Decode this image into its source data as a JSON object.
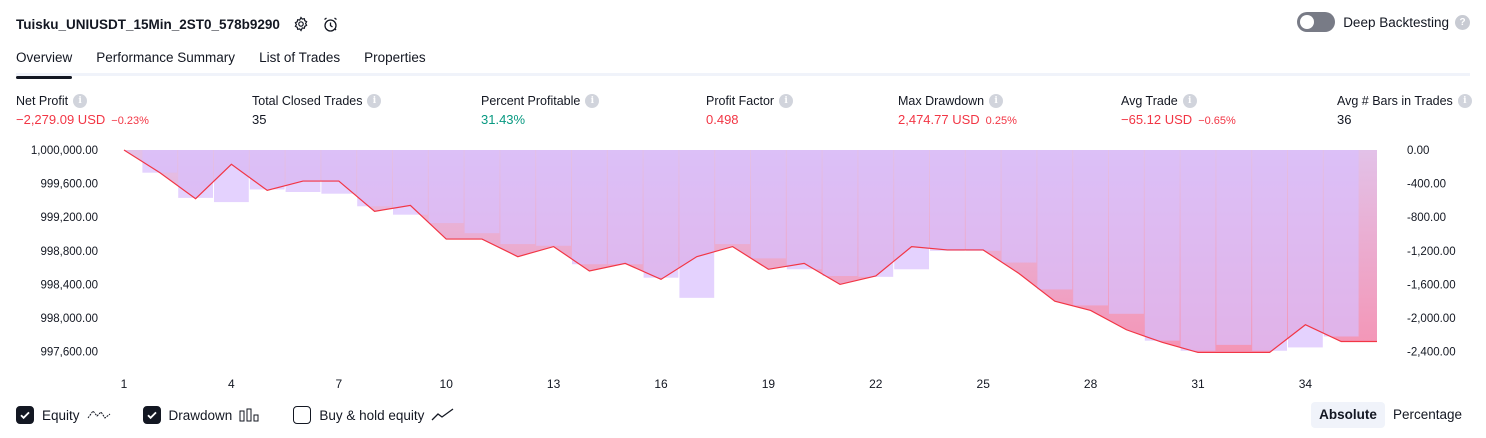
{
  "header": {
    "title": "Tuisku_UNIUSDT_15Min_2ST0_578b9290",
    "deep_backtesting_label": "Deep Backtesting",
    "deep_backtesting_enabled": false
  },
  "tabs": [
    "Overview",
    "Performance Summary",
    "List of Trades",
    "Properties"
  ],
  "active_tab": "Overview",
  "metrics": [
    {
      "label": "Net Profit",
      "value": "−2,279.09 USD",
      "pct": "−0.23%",
      "tone": "neg"
    },
    {
      "label": "Total Closed Trades",
      "value": "35",
      "pct": "",
      "tone": "neutral"
    },
    {
      "label": "Percent Profitable",
      "value": "31.43%",
      "pct": "",
      "tone": "pos"
    },
    {
      "label": "Profit Factor",
      "value": "0.498",
      "pct": "",
      "tone": "neg"
    },
    {
      "label": "Max Drawdown",
      "value": "2,474.77 USD",
      "pct": "0.25%",
      "tone": "neg"
    },
    {
      "label": "Avg Trade",
      "value": "−65.12 USD",
      "pct": "−0.65%",
      "tone": "neg"
    },
    {
      "label": "Avg # Bars in Trades",
      "value": "36",
      "pct": "",
      "tone": "neutral"
    }
  ],
  "chart_data": {
    "type": "area",
    "equity_axis": {
      "ticks": [
        "1,000,000.00",
        "999,600.00",
        "999,200.00",
        "998,800.00",
        "998,400.00",
        "998,000.00",
        "997,600.00"
      ],
      "tick_values": [
        1000000,
        999600,
        999200,
        998800,
        998400,
        998000,
        997600
      ],
      "ylim": [
        997500,
        1000000
      ]
    },
    "drawdown_axis": {
      "ticks": [
        "0.00",
        "-400.00",
        "-800.00",
        "-1,200.00",
        "-1,600.00",
        "-2,000.00",
        "-2,400.00"
      ],
      "tick_values": [
        0,
        -400,
        -800,
        -1200,
        -1600,
        -2000,
        -2400
      ],
      "ylim": [
        -2500,
        0
      ]
    },
    "x_ticks": [
      "1",
      "4",
      "7",
      "10",
      "13",
      "16",
      "19",
      "22",
      "25",
      "28",
      "31",
      "34"
    ],
    "x_tick_values": [
      1,
      4,
      7,
      10,
      13,
      16,
      19,
      22,
      25,
      28,
      31,
      34
    ],
    "xlim": [
      1,
      36
    ],
    "series": [
      {
        "name": "Equity",
        "x": [
          1,
          2,
          3,
          4,
          5,
          6,
          7,
          8,
          9,
          10,
          11,
          12,
          13,
          14,
          15,
          16,
          17,
          18,
          19,
          20,
          21,
          22,
          23,
          24,
          25,
          26,
          27,
          28,
          29,
          30,
          31,
          32,
          33,
          34,
          35,
          36
        ],
        "values": [
          1000000,
          999730,
          999420,
          999830,
          999520,
          999630,
          999630,
          999270,
          999340,
          998940,
          998940,
          998730,
          998850,
          998560,
          998650,
          998460,
          998730,
          998850,
          998580,
          998650,
          998400,
          998500,
          998850,
          998810,
          998810,
          998530,
          998200,
          998090,
          997860,
          997710,
          997590,
          997590,
          997590,
          997920,
          997720,
          997720
        ]
      },
      {
        "name": "Drawdown",
        "x": [
          2,
          3,
          4,
          5,
          6,
          7,
          8,
          9,
          10,
          11,
          12,
          13,
          14,
          15,
          16,
          17,
          18,
          19,
          20,
          21,
          22,
          23,
          24,
          25,
          26,
          27,
          28,
          29,
          30,
          31,
          32,
          33,
          34,
          35
        ],
        "values": [
          -270,
          -570,
          -620,
          -470,
          -500,
          -520,
          -670,
          -770,
          -870,
          -990,
          -1120,
          -1140,
          -1360,
          -1360,
          -1520,
          -1760,
          -1120,
          -1290,
          -1420,
          -1500,
          -1510,
          -1420,
          -1200,
          -1200,
          -1340,
          -1660,
          -1850,
          -1950,
          -2270,
          -2390,
          -2320,
          -2390,
          -2350,
          -2220
        ]
      }
    ],
    "colors": {
      "equity_line": "#f23645",
      "equity_fill_top": "#e1bee7",
      "equity_fill_bottom": "#f48fb1",
      "drawdown_bar": "#d8bffe"
    }
  },
  "legend": {
    "equity_label": "Equity",
    "drawdown_label": "Drawdown",
    "buyhold_label": "Buy & hold equity",
    "equity_checked": true,
    "drawdown_checked": true,
    "buyhold_checked": false
  },
  "scale": {
    "absolute_label": "Absolute",
    "percentage_label": "Percentage",
    "selected": "Absolute"
  }
}
